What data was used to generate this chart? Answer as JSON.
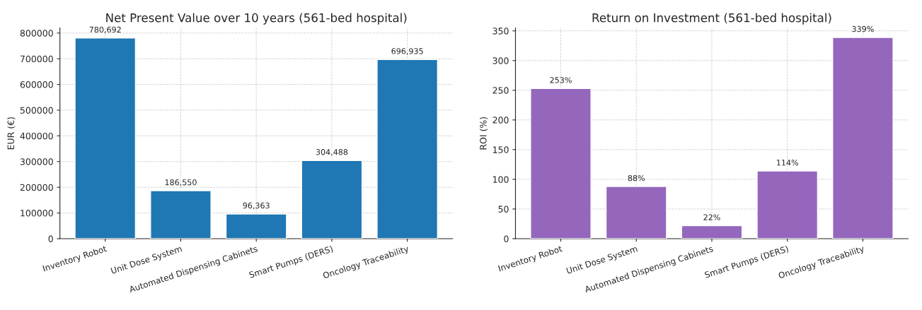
{
  "chart_data": [
    {
      "type": "bar",
      "title": "Net Present Value over 10 years (561-bed hospital)",
      "ylabel": "EUR (€)",
      "categories": [
        "Inventory Robot",
        "Unit Dose System",
        "Automated Dispensing Cabinets",
        "Smart Pumps (DERS)",
        "Oncology Traceability"
      ],
      "values": [
        780692,
        186550,
        96363,
        304488,
        696935
      ],
      "value_labels": [
        "780,692",
        "186,550",
        "96,363",
        "304,488",
        "696,935"
      ],
      "color": "#1f77b4",
      "ylim": [
        0,
        820000
      ],
      "yticks": [
        0,
        100000,
        200000,
        300000,
        400000,
        500000,
        600000,
        700000,
        800000
      ],
      "grid": true
    },
    {
      "type": "bar",
      "title": "Return on Investment (561-bed hospital)",
      "ylabel": "ROI (%)",
      "categories": [
        "Inventory Robot",
        "Unit Dose System",
        "Automated Dispensing Cabinets",
        "Smart Pumps (DERS)",
        "Oncology Traceability"
      ],
      "values": [
        253,
        88,
        22,
        114,
        339
      ],
      "value_labels": [
        "253%",
        "88%",
        "22%",
        "114%",
        "339%"
      ],
      "color": "#9467bd",
      "ylim": [
        0,
        355
      ],
      "yticks": [
        0,
        50,
        100,
        150,
        200,
        250,
        300,
        350
      ],
      "grid": true
    }
  ]
}
